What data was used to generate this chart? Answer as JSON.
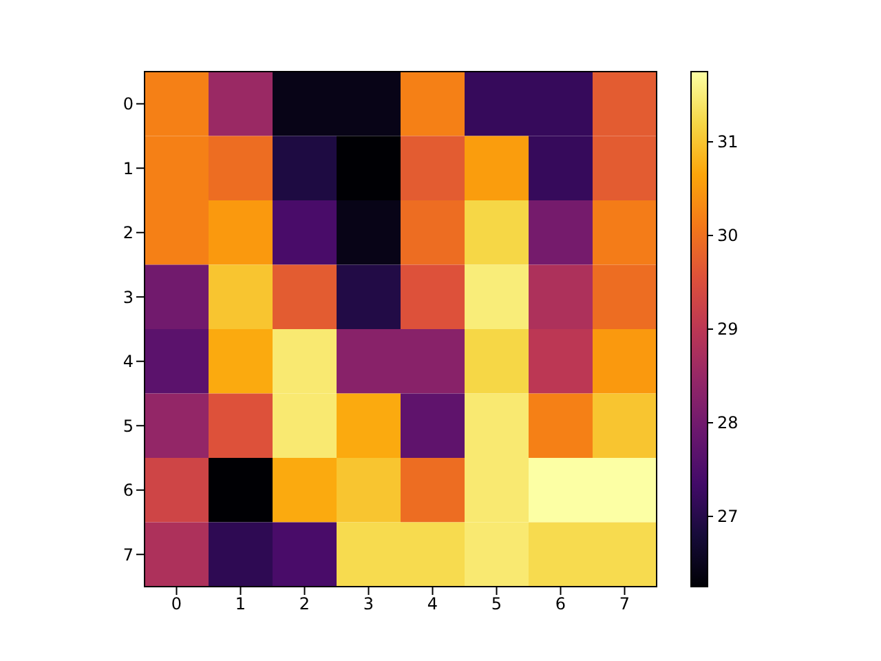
{
  "chart_data": {
    "type": "heatmap",
    "categories": [
      "0",
      "1",
      "2",
      "3",
      "4",
      "5",
      "6",
      "7"
    ],
    "y_categories": [
      "0",
      "1",
      "2",
      "3",
      "4",
      "5",
      "6",
      "7"
    ],
    "cells": [
      [
        30.2,
        28.55,
        26.45,
        26.45,
        30.2,
        27.2,
        27.2,
        29.7
      ],
      [
        30.2,
        29.95,
        26.9,
        26.25,
        29.7,
        30.55,
        27.2,
        29.7
      ],
      [
        30.2,
        30.5,
        27.45,
        26.45,
        29.95,
        31.2,
        28.05,
        30.15
      ],
      [
        28.0,
        31.0,
        29.7,
        26.95,
        29.55,
        31.5,
        28.8,
        29.95
      ],
      [
        27.7,
        30.7,
        31.45,
        28.3,
        28.3,
        31.2,
        29.0,
        30.5
      ],
      [
        28.45,
        29.55,
        31.45,
        30.7,
        27.75,
        31.45,
        30.2,
        31.0
      ],
      [
        29.3,
        26.25,
        30.7,
        31.0,
        29.95,
        31.45,
        31.75,
        31.75
      ],
      [
        28.8,
        27.1,
        27.45,
        31.25,
        31.25,
        31.45,
        31.25,
        31.25
      ]
    ],
    "clim": [
      26.25,
      31.75
    ],
    "cticks": [
      27,
      28,
      29,
      30,
      31
    ]
  }
}
